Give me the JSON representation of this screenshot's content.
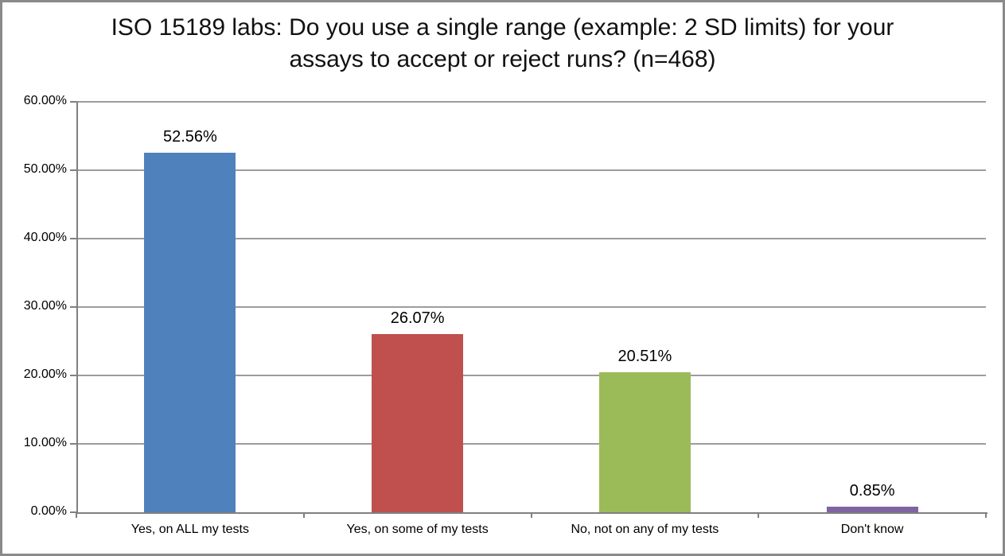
{
  "figure": {
    "background": "#ffffff",
    "border_color": "#8a8a8a"
  },
  "chart_data": {
    "type": "bar",
    "title": "ISO 15189 labs: Do you use a single range (example: 2 SD limits) for your assays to accept or reject runs? (n=468)",
    "categories": [
      "Yes, on ALL my tests",
      "Yes, on some of my tests",
      "No, not on any of my tests",
      "Don't know"
    ],
    "values": [
      52.56,
      26.07,
      20.51,
      0.85
    ],
    "value_labels": [
      "52.56%",
      "26.07%",
      "20.51%",
      "0.85%"
    ],
    "bar_colors": [
      "#4F81BD",
      "#C0504D",
      "#9BBB59",
      "#8064A2"
    ],
    "xlabel": "",
    "ylabel": "",
    "ylim": [
      0,
      60
    ],
    "ytick_step": 10,
    "ytick_labels": [
      "0.00%",
      "10.00%",
      "20.00%",
      "30.00%",
      "40.00%",
      "50.00%",
      "60.00%"
    ],
    "grid": "horizontal",
    "legend": "none",
    "gridline_color": "#9c9c9c",
    "axis_color": "#808080",
    "text_color": "#000000"
  }
}
